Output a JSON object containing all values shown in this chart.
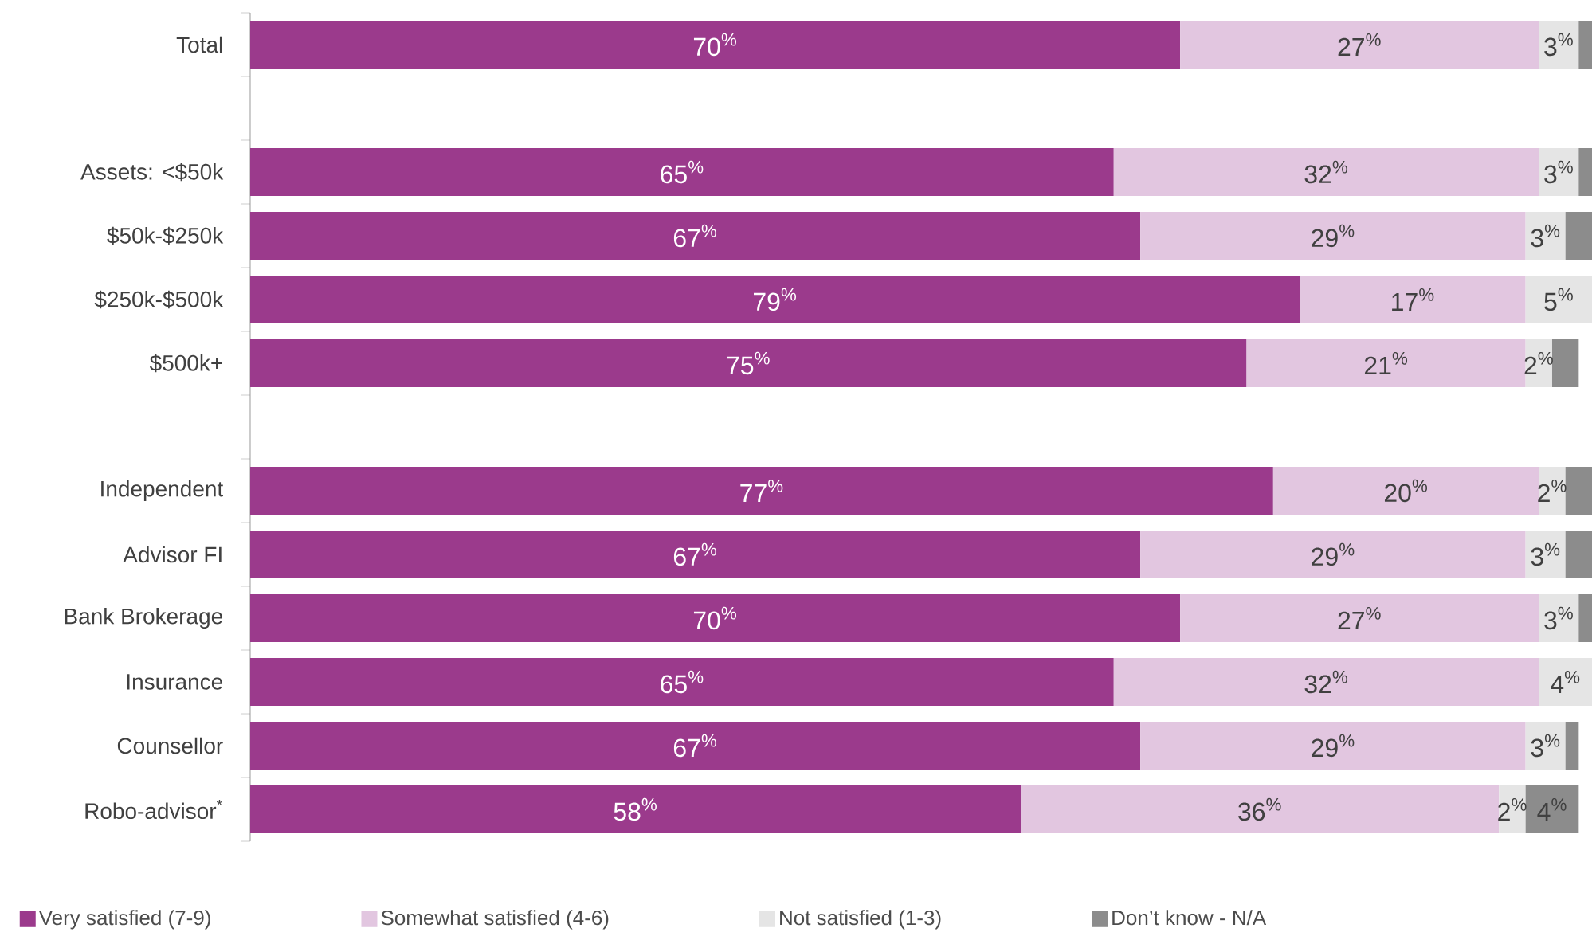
{
  "chart_data": {
    "type": "bar",
    "orientation": "horizontal",
    "stacked": true,
    "legend": "bottom",
    "tick_labels": "y",
    "xlim": [
      0,
      101
    ],
    "categories": [
      "Total",
      null,
      "Assets: <$50k",
      "$50k-$250k",
      "$250k-$500k",
      "$500k+",
      null,
      "Independent",
      "Advisor FI",
      "Bank Brokerage",
      "Insurance",
      "Counsellor",
      "Robo-advisor$^{*}$"
    ],
    "series": [
      {
        "name": "Very satisfied (7-9)",
        "color": "#9b3a8c",
        "values": [
          70,
          null,
          65,
          67,
          79,
          75,
          null,
          77,
          67,
          70,
          65,
          67,
          58
        ],
        "value_labels": [
          "70$^{%}$",
          null,
          "65$^{%}$",
          "67$^{%}$",
          "79$^{%}$",
          "75$^{%}$",
          null,
          "77$^{%}$",
          "67$^{%}$",
          "70$^{%}$",
          "65$^{%}$",
          "67$^{%}$",
          "58$^{%}$"
        ]
      },
      {
        "name": "Somewhat satisfied (4-6)",
        "color": "#e2c6e0",
        "values": [
          27,
          null,
          32,
          29,
          17,
          21,
          null,
          20,
          29,
          27,
          32,
          29,
          36
        ],
        "value_labels": [
          "27$^{%}$",
          null,
          "32$^{%}$",
          "29$^{%}$",
          "17$^{%}$",
          "21$^{%}$",
          null,
          "20$^{%}$",
          "29$^{%}$",
          "27$^{%}$",
          "32$^{%}$",
          "29$^{%}$",
          "36$^{%}$"
        ]
      },
      {
        "name": "Not satisfied (1-3)",
        "color": "#e5e5e5",
        "values": [
          3,
          null,
          3,
          3,
          5,
          2,
          null,
          2,
          3,
          3,
          4,
          3,
          2
        ],
        "value_labels": [
          "3$^{%}$",
          null,
          "3$^{%}$",
          "3$^{%}$",
          "5$^{%}$",
          "2$^{%}$",
          null,
          "2$^{%}$",
          "3$^{%}$",
          "3$^{%}$",
          "4$^{%}$",
          "3$^{%}$",
          "2$^{%}$"
        ]
      },
      {
        "name": "Don’t know - N/A",
        "color": "#8c8c8c",
        "values": [
          1,
          null,
          1,
          2,
          0,
          2,
          null,
          2,
          2,
          1,
          0,
          1,
          4
        ],
        "value_labels": [
          null,
          null,
          null,
          null,
          null,
          null,
          null,
          null,
          null,
          null,
          null,
          null,
          "4$^{%}$"
        ]
      }
    ]
  }
}
